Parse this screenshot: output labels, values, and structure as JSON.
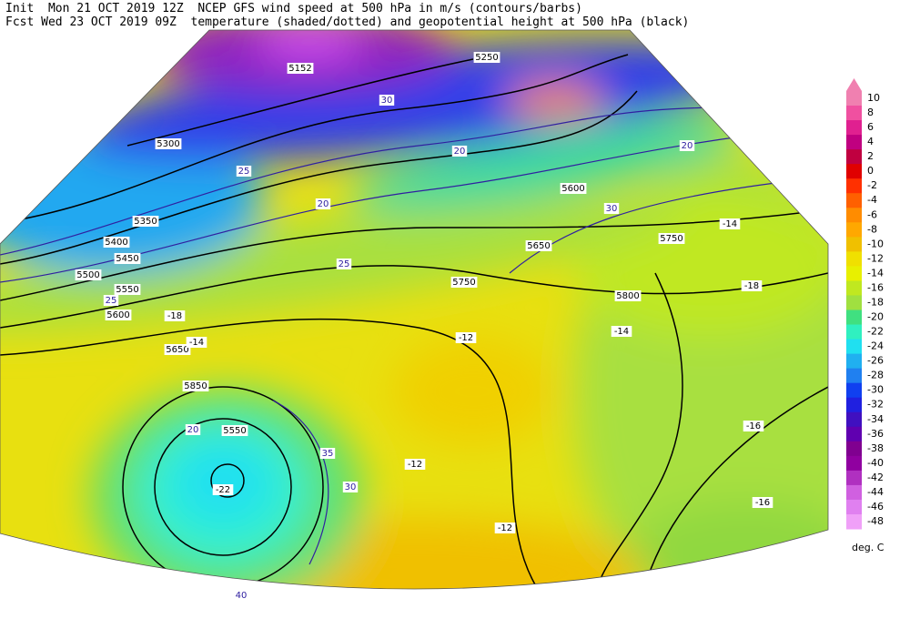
{
  "header": {
    "line1": "Init  Mon 21 OCT 2019 12Z  NCEP GFS wind speed at 500 hPa in m/s (contours/barbs)",
    "line2": "Fcst Wed 23 OCT 2019 09Z  temperature (shaded/dotted) and geopotential height at 500 hPa (black)"
  },
  "colorbar": {
    "levels": [
      10,
      8,
      6,
      4,
      2,
      0,
      -2,
      -4,
      -6,
      -8,
      -10,
      -12,
      -14,
      -16,
      -18,
      -20,
      -22,
      -24,
      -26,
      -28,
      -30,
      -32,
      -34,
      -36,
      -38,
      -40,
      -42,
      -44,
      -46,
      -48
    ],
    "colors": [
      "#f080b0",
      "#f050a0",
      "#e02090",
      "#c00080",
      "#c00040",
      "#e00000",
      "#ff3000",
      "#ff6000",
      "#ff8c00",
      "#ffa800",
      "#f0c000",
      "#f0e000",
      "#e8f000",
      "#c0e820",
      "#a0e040",
      "#40e080",
      "#30f0c0",
      "#20e0f0",
      "#20b0f0",
      "#2080f0",
      "#1040f0",
      "#2020e0",
      "#4010c0",
      "#6000b0",
      "#800090",
      "#9000a0",
      "#b030c0",
      "#d060e0",
      "#e080f0",
      "#f0a0f8"
    ],
    "unit": "deg. C"
  },
  "map_labels": {
    "height": [
      "5300",
      "5350",
      "5400",
      "5450",
      "5500",
      "5550",
      "5600",
      "5650",
      "5850",
      "5550",
      "5750",
      "5800",
      "5750",
      "5600",
      "5650",
      "5250",
      "5152"
    ],
    "wind": [
      "25",
      "20",
      "25",
      "30",
      "20",
      "30",
      "20",
      "25",
      "20",
      "30",
      "35",
      "40"
    ],
    "temperature": [
      "-12",
      "-14",
      "-16",
      "-18",
      "-14",
      "-22",
      "-12",
      "-12",
      "-16",
      "-18",
      "-14"
    ]
  }
}
